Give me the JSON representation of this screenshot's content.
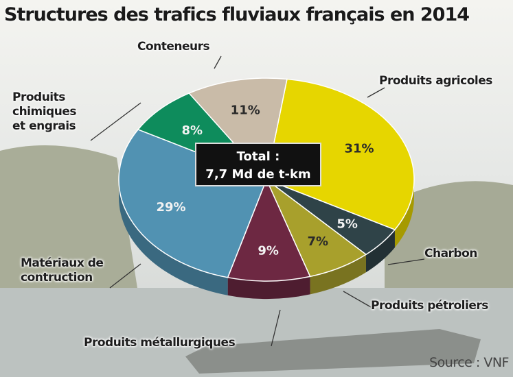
{
  "chart_data": {
    "type": "pie",
    "title": "Structures des trafics fluviaux français en 2014",
    "categories": [
      "Produits agricoles",
      "Charbon",
      "Produits pétroliers",
      "Produits métallurgiques",
      "Matériaux de contruction",
      "Produits chimiques et engrais",
      "Conteneurs"
    ],
    "values": [
      31,
      5,
      7,
      9,
      29,
      8,
      11
    ],
    "value_labels": [
      "31%",
      "5%",
      "7%",
      "9%",
      "29%",
      "8%",
      "11%"
    ],
    "colors": [
      "#e6d600",
      "#2f4348",
      "#a8a02c",
      "#6d2842",
      "#5192b2",
      "#0e8c5c",
      "#c9bba8"
    ],
    "center_label": [
      "Total :",
      "7,7 Md de t-km"
    ],
    "source": "Source : VNF"
  }
}
